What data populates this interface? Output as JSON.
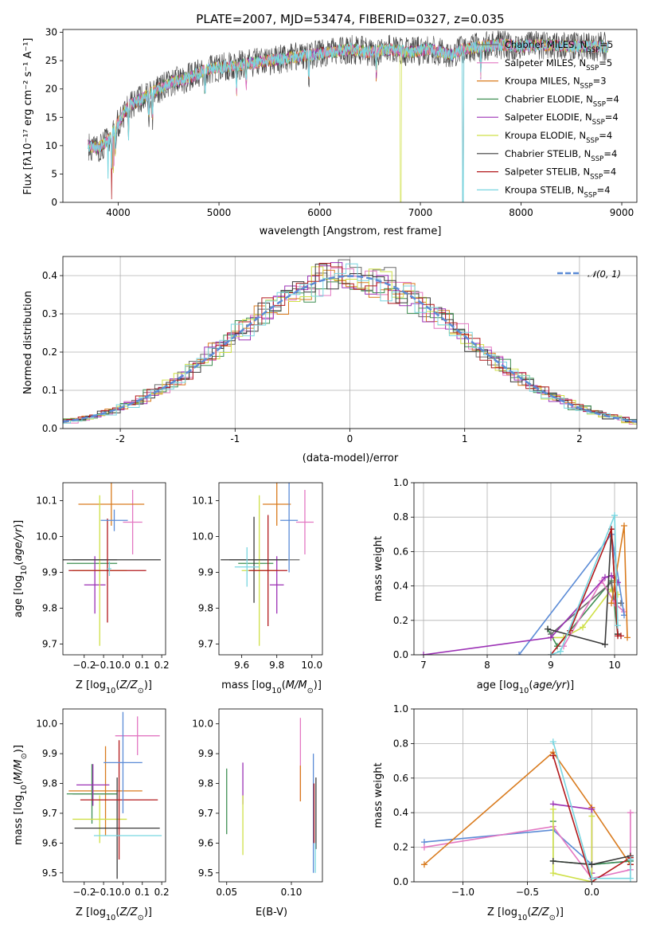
{
  "chart_data": [
    {
      "id": "spectrum",
      "type": "line",
      "title": "PLATE=2007, MJD=53474, FIBERID=0327, z=0.035",
      "xlabel": "wavelength [Angstrom, rest frame]",
      "ylabel": "Flux [fλ10⁻¹⁷ erg cm⁻² s⁻¹ A⁻¹]",
      "xlim": [
        3450,
        9150
      ],
      "ylim": [
        0,
        30.5
      ],
      "xticks": [
        4000,
        5000,
        6000,
        7000,
        8000,
        9000
      ],
      "yticks": [
        0,
        5,
        10,
        15,
        20,
        25,
        30
      ],
      "grid": false,
      "legend_position": "top-right",
      "continuum": {
        "x": [
          3700,
          3800,
          3900,
          4000,
          4100,
          4200,
          4300,
          4400,
          4500,
          4700,
          4900,
          5100,
          5300,
          5500,
          5700,
          5900,
          6100,
          6300,
          6500,
          6700,
          6900,
          7100,
          7300,
          7420,
          7600,
          7800,
          8000,
          8200,
          8400,
          8600,
          8800,
          8850
        ],
        "y": [
          10,
          9.5,
          11,
          14,
          17,
          18,
          19,
          20,
          21,
          22,
          23.5,
          24,
          24.5,
          25,
          25.5,
          26,
          26.5,
          27,
          26.5,
          27,
          26.5,
          27,
          26,
          27,
          27.5,
          27.8,
          27.5,
          27.8,
          27.6,
          27.5,
          27.5,
          27.5
        ]
      },
      "cutoffs": [
        {
          "series": "Kroupa ELODIE",
          "x": 6800
        },
        {
          "series": "Salpeter STELIB",
          "x": 7420
        },
        {
          "series": "Kroupa STELIB",
          "x": 7420
        }
      ],
      "series": [
        {
          "name": "Chabrier MILES",
          "sub": "SSP",
          "n": "5",
          "color": "#6a6a6a"
        },
        {
          "name": "Salpeter MILES",
          "sub": "SSP",
          "n": "5",
          "color": "#e377c2"
        },
        {
          "name": "Kroupa MILES",
          "sub": "SSP",
          "n": "3",
          "color": "#d97b1e"
        },
        {
          "name": "Chabrier ELODIE",
          "sub": "SSP",
          "n": "4",
          "color": "#3f8f52"
        },
        {
          "name": "Salpeter ELODIE",
          "sub": "SSP",
          "n": "4",
          "color": "#9b30b5"
        },
        {
          "name": "Kroupa ELODIE",
          "sub": "SSP",
          "n": "4",
          "color": "#cfe048"
        },
        {
          "name": "Chabrier STELIB",
          "sub": "SSP",
          "n": "4",
          "color": "#3a3a3a"
        },
        {
          "name": "Salpeter STELIB",
          "sub": "SSP",
          "n": "4",
          "color": "#b2181b"
        },
        {
          "name": "Kroupa STELIB",
          "sub": "SSP",
          "n": "4",
          "color": "#78d6e0"
        }
      ]
    },
    {
      "id": "residuals",
      "type": "line",
      "xlabel": "(data-model)/error",
      "ylabel": "Normed distribution",
      "xlim": [
        -2.5,
        2.5
      ],
      "ylim": [
        0,
        0.45
      ],
      "xticks": [
        -2,
        -1,
        0,
        1,
        2
      ],
      "yticks": [
        0.0,
        0.1,
        0.2,
        0.3,
        0.4
      ],
      "grid": true,
      "legend_position": "top-right",
      "reference": {
        "label": "𝒩(0, 1)",
        "mean": 0,
        "sigma": 1,
        "color": "#5b8bd6"
      },
      "histogram_bin_width": 0.1,
      "histogram_colors": [
        "#6a6a6a",
        "#e377c2",
        "#d97b1e",
        "#3f8f52",
        "#9b30b5",
        "#cfe048",
        "#3a3a3a",
        "#b2181b",
        "#78d6e0"
      ]
    },
    {
      "id": "age-vs-Z",
      "type": "errorbar",
      "xlabel": "Z [log₁₀(Z/Z⊙)]",
      "ylabel": "age  [log₁₀(age/yr)]",
      "xlim": [
        -0.31,
        0.22
      ],
      "ylim": [
        9.67,
        10.15
      ],
      "xticks": [
        -0.2,
        -0.1,
        0.0,
        0.1,
        0.2
      ],
      "xticklabels": [
        "−0.2",
        "−0.1",
        "0.0",
        "0.1",
        "0.2"
      ],
      "yticks": [
        9.7,
        9.8,
        9.9,
        10.0,
        10.1
      ],
      "grid": false,
      "points": [
        {
          "x": -0.145,
          "xerr": 0.115,
          "y": 9.935,
          "yerr": 0.0,
          "color": "#6a6a6a"
        },
        {
          "x": 0.05,
          "xerr": 0.05,
          "y": 10.04,
          "yerr": 0.09,
          "color": "#e377c2"
        },
        {
          "x": -0.06,
          "xerr": 0.17,
          "y": 10.09,
          "yerr": 0.06,
          "color": "#d97b1e"
        },
        {
          "x": -0.16,
          "xerr": 0.13,
          "y": 9.925,
          "yerr": 0.0,
          "color": "#3f8f52"
        },
        {
          "x": -0.145,
          "xerr": 0.055,
          "y": 9.865,
          "yerr": 0.08,
          "color": "#9b30b5"
        },
        {
          "x": -0.12,
          "xerr": 0.14,
          "y": 9.905,
          "yerr": 0.21,
          "color": "#cfe048"
        },
        {
          "x": -0.06,
          "xerr": 0.255,
          "y": 9.935,
          "yerr": 0.0,
          "color": "#3a3a3a"
        },
        {
          "x": -0.08,
          "xerr": 0.2,
          "y": 9.905,
          "yerr": 0.145,
          "color": "#b2181b"
        },
        {
          "x": -0.045,
          "xerr": 0.07,
          "y": 10.045,
          "yerr": 0.03,
          "color": "#5b8bd6"
        },
        {
          "x": -0.07,
          "xerr": 0.01,
          "y": 9.91,
          "yerr": 0.02,
          "color": "#78d6e0"
        }
      ]
    },
    {
      "id": "age-vs-mass",
      "type": "errorbar",
      "xlabel": "mass [log₁₀(M/M⊙)]",
      "xlim": [
        9.47,
        10.06
      ],
      "ylim": [
        9.67,
        10.15
      ],
      "xticks": [
        9.6,
        9.8,
        10.0
      ],
      "xticklabels": [
        "9.6",
        "9.8",
        "10.0"
      ],
      "yticks": [
        9.7,
        9.8,
        9.9,
        10.0,
        10.1
      ],
      "grid": false,
      "points": [
        {
          "x": 9.73,
          "xerr": 0.2,
          "y": 9.935,
          "yerr": 0.0,
          "color": "#6a6a6a"
        },
        {
          "x": 9.96,
          "xerr": 0.05,
          "y": 10.04,
          "yerr": 0.09,
          "color": "#e377c2"
        },
        {
          "x": 9.8,
          "xerr": 0.08,
          "y": 10.09,
          "yerr": 0.06,
          "color": "#d97b1e"
        },
        {
          "x": 9.68,
          "xerr": 0.1,
          "y": 9.925,
          "yerr": 0.0,
          "color": "#3f8f52"
        },
        {
          "x": 9.8,
          "xerr": 0.04,
          "y": 9.865,
          "yerr": 0.08,
          "color": "#9b30b5"
        },
        {
          "x": 9.7,
          "xerr": 0.1,
          "y": 9.905,
          "yerr": 0.21,
          "color": "#cfe048"
        },
        {
          "x": 9.67,
          "xerr": 0.19,
          "y": 9.935,
          "yerr": 0.12,
          "color": "#3a3a3a"
        },
        {
          "x": 9.75,
          "xerr": 0.11,
          "y": 9.905,
          "yerr": 0.155,
          "color": "#b2181b"
        },
        {
          "x": 9.87,
          "xerr": 0.05,
          "y": 10.045,
          "yerr": 0.145,
          "color": "#5b8bd6"
        },
        {
          "x": 9.63,
          "xerr": 0.07,
          "y": 9.915,
          "yerr": 0.055,
          "color": "#78d6e0"
        }
      ]
    },
    {
      "id": "weight-vs-age",
      "type": "line",
      "xlabel": "age  [log₁₀(age/yr)]",
      "ylabel": "mass weight",
      "xlim": [
        6.85,
        10.35
      ],
      "ylim": [
        0,
        1.0
      ],
      "xticks": [
        7,
        8,
        9,
        10
      ],
      "yticks": [
        0.0,
        0.2,
        0.4,
        0.6,
        0.8,
        1.0
      ],
      "grid": true,
      "series": [
        {
          "color": "#3f8f52",
          "x": [
            8.95,
            9.1,
            9.95,
            10.05
          ],
          "y": [
            0.15,
            0.05,
            0.43,
            0.12
          ]
        },
        {
          "color": "#cfe048",
          "x": [
            9.0,
            9.2,
            9.5,
            9.95,
            10.05
          ],
          "y": [
            0.1,
            0.1,
            0.16,
            0.38,
            0.35
          ]
        },
        {
          "color": "#6a6a6a",
          "x": [
            9.0,
            9.95,
            10.0,
            10.1
          ],
          "y": [
            0.12,
            0.42,
            0.3,
            0.3
          ]
        },
        {
          "color": "#e377c2",
          "x": [
            9.2,
            9.8,
            10.0,
            10.15
          ],
          "y": [
            0.05,
            0.43,
            0.3,
            0.25
          ]
        },
        {
          "color": "#5b8bd6",
          "x": [
            8.5,
            9.95,
            10.15
          ],
          "y": [
            0.0,
            0.7,
            0.23
          ]
        },
        {
          "color": "#9b30b5",
          "x": [
            7.0,
            9.0,
            9.85,
            9.95,
            10.05
          ],
          "y": [
            0.0,
            0.1,
            0.45,
            0.46,
            0.42
          ]
        },
        {
          "color": "#3a3a3a",
          "x": [
            8.95,
            9.85,
            9.95,
            10.05
          ],
          "y": [
            0.15,
            0.06,
            0.73,
            0.12
          ]
        },
        {
          "color": "#b2181b",
          "x": [
            9.0,
            9.3,
            9.95,
            10.05,
            10.1
          ],
          "y": [
            0.0,
            0.14,
            0.73,
            0.11,
            0.11
          ]
        },
        {
          "color": "#d97b1e",
          "x": [
            9.95,
            10.15,
            10.2
          ],
          "y": [
            0.3,
            0.75,
            0.1
          ]
        },
        {
          "color": "#78d6e0",
          "x": [
            9.0,
            9.15,
            10.0,
            10.05
          ],
          "y": [
            0.0,
            0.02,
            0.81,
            0.17
          ]
        }
      ]
    },
    {
      "id": "mass-vs-Z",
      "type": "errorbar",
      "xlabel": "Z [log₁₀(Z/Z⊙)]",
      "ylabel": "mass [log₁₀(M/M⊙)]",
      "xlim": [
        -0.31,
        0.22
      ],
      "ylim": [
        9.47,
        10.05
      ],
      "xticks": [
        -0.2,
        -0.1,
        0.0,
        0.1,
        0.2
      ],
      "xticklabels": [
        "−0.2",
        "−0.1",
        "0.0",
        "0.1",
        "0.2"
      ],
      "yticks": [
        9.5,
        9.6,
        9.7,
        9.8,
        9.9,
        10.0
      ],
      "grid": false,
      "points": [
        {
          "x": -0.145,
          "xerr": 0.115,
          "y": 9.765,
          "yerr": 0.0,
          "color": "#6a6a6a"
        },
        {
          "x": 0.075,
          "xerr": 0.115,
          "y": 9.96,
          "yerr": 0.065,
          "color": "#e377c2"
        },
        {
          "x": -0.09,
          "xerr": 0.19,
          "y": 9.775,
          "yerr": 0.15,
          "color": "#d97b1e"
        },
        {
          "x": -0.16,
          "xerr": 0.13,
          "y": 9.765,
          "yerr": 0.1,
          "color": "#3f8f52"
        },
        {
          "x": -0.155,
          "xerr": 0.085,
          "y": 9.795,
          "yerr": 0.07,
          "color": "#9b30b5"
        },
        {
          "x": -0.12,
          "xerr": 0.14,
          "y": 9.68,
          "yerr": 0.08,
          "color": "#cfe048"
        },
        {
          "x": -0.03,
          "xerr": 0.22,
          "y": 9.65,
          "yerr": 0.17,
          "color": "#3a3a3a"
        },
        {
          "x": -0.02,
          "xerr": 0.2,
          "y": 9.745,
          "yerr": 0.2,
          "color": "#b2181b"
        },
        {
          "x": 0.0,
          "xerr": 0.1,
          "y": 9.87,
          "yerr": 0.17,
          "color": "#5b8bd6"
        },
        {
          "x": 0.025,
          "xerr": 0.175,
          "y": 9.625,
          "yerr": 0.0,
          "color": "#78d6e0"
        }
      ]
    },
    {
      "id": "mass-vs-EBV",
      "type": "errorbar",
      "xlabel": "E(B-V)",
      "xlim": [
        0.044,
        0.124
      ],
      "ylim": [
        9.47,
        10.05
      ],
      "xticks": [
        0.05,
        0.1
      ],
      "xticklabels": [
        "0.05",
        "0.10"
      ],
      "yticks": [
        9.5,
        9.6,
        9.7,
        9.8,
        9.9,
        10.0
      ],
      "grid": false,
      "points": [
        {
          "x": 0.05,
          "y": 9.74,
          "yerr": 0.11,
          "color": "#3f8f52"
        },
        {
          "x": 0.0625,
          "y": 9.8,
          "yerr": 0.07,
          "color": "#9b30b5"
        },
        {
          "x": 0.0625,
          "y": 9.66,
          "yerr": 0.1,
          "color": "#cfe048"
        },
        {
          "x": 0.107,
          "y": 9.88,
          "yerr": 0.14,
          "color": "#e377c2"
        },
        {
          "x": 0.107,
          "y": 9.8,
          "yerr": 0.06,
          "color": "#d97b1e"
        },
        {
          "x": 0.117,
          "y": 9.7,
          "yerr": 0.2,
          "color": "#5b8bd6"
        },
        {
          "x": 0.1175,
          "y": 9.7,
          "yerr": 0.1,
          "color": "#b2181b"
        },
        {
          "x": 0.119,
          "y": 9.7,
          "yerr": 0.12,
          "color": "#3a3a3a"
        },
        {
          "x": 0.1185,
          "y": 9.55,
          "yerr": 0.05,
          "color": "#78d6e0"
        }
      ]
    },
    {
      "id": "weight-vs-Z",
      "type": "line",
      "xlabel": "Z [log₁₀(Z/Z⊙)]",
      "ylabel": "mass weight",
      "xlim": [
        -1.38,
        0.35
      ],
      "ylim": [
        0,
        1.0
      ],
      "xticks": [
        -1.0,
        -0.5,
        0.0
      ],
      "xticklabels": [
        "−1.0",
        "−0.5",
        "0.0"
      ],
      "yticks": [
        0.0,
        0.2,
        0.4,
        0.6,
        0.8,
        1.0
      ],
      "grid": true,
      "series": [
        {
          "color": "#5b8bd6",
          "x": [
            -1.3,
            -0.3,
            0.0,
            0.3
          ],
          "y": [
            0.23,
            0.3,
            0.1,
            0.12
          ]
        },
        {
          "color": "#e377c2",
          "x": [
            -1.3,
            -0.3,
            0.0,
            0.3,
            0.3
          ],
          "y": [
            0.2,
            0.32,
            0.02,
            0.07,
            0.4
          ]
        },
        {
          "color": "#d97b1e",
          "x": [
            -1.3,
            -0.3,
            0.0,
            0.3
          ],
          "y": [
            0.1,
            0.75,
            0.43,
            0.1
          ]
        },
        {
          "color": "#3f8f52",
          "x": [
            -0.3,
            -0.3,
            0.0,
            0.3
          ],
          "y": [
            0.35,
            0.12,
            0.1,
            0.12
          ]
        },
        {
          "color": "#9b30b5",
          "x": [
            -0.3,
            0.0,
            0.0
          ],
          "y": [
            0.45,
            0.42,
            0.05
          ]
        },
        {
          "color": "#cfe048",
          "x": [
            -0.3,
            -0.3,
            0.0,
            0.0
          ],
          "y": [
            0.42,
            0.05,
            0.0,
            0.38
          ]
        },
        {
          "color": "#3a3a3a",
          "x": [
            -0.3,
            0.0,
            0.3
          ],
          "y": [
            0.12,
            0.1,
            0.15
          ]
        },
        {
          "color": "#b2181b",
          "x": [
            -0.3,
            0.0,
            0.3,
            0.3
          ],
          "y": [
            0.73,
            0.0,
            0.14,
            0.1
          ]
        },
        {
          "color": "#78d6e0",
          "x": [
            -0.3,
            0.0,
            0.3,
            0.3
          ],
          "y": [
            0.81,
            0.02,
            0.02,
            0.13
          ]
        }
      ]
    }
  ]
}
